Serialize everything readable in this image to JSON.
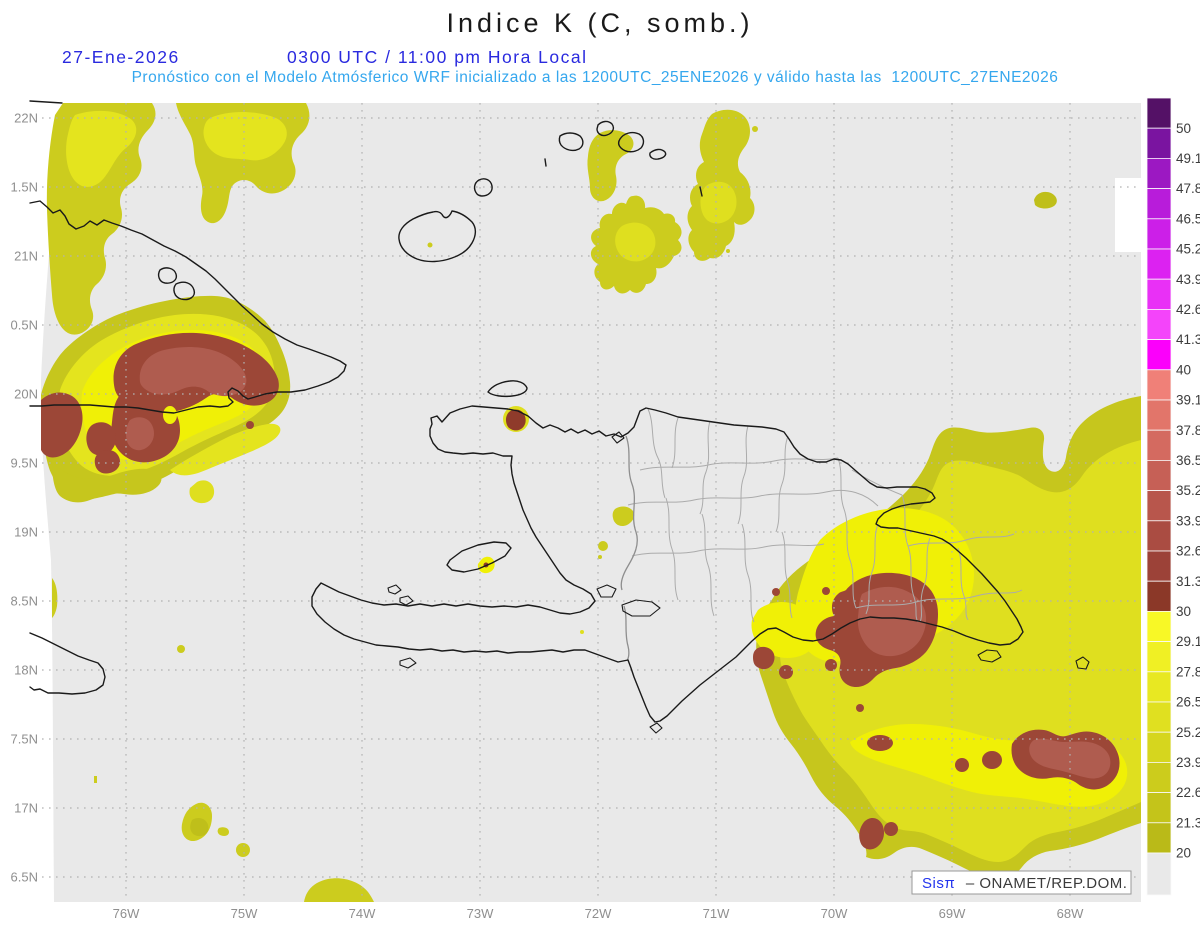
{
  "header": {
    "title": "Indice K (C, somb.)",
    "date": "27-Ene-2026",
    "time_line": "0300 UTC / 11:00 pm Hora Local",
    "forecast_line": "Pronóstico con el Modelo Atmósferico WRF inicializado a las 1200UTC_25ENE2026 y válido hasta las  1200UTC_27ENE2026"
  },
  "axes": {
    "y_labels": [
      "22N",
      "1.5N",
      "21N",
      "0.5N",
      "20N",
      "9.5N",
      "19N",
      "8.5N",
      "18N",
      "7.5N",
      "17N",
      "6.5N"
    ],
    "x_labels": [
      "76W",
      "75W",
      "74W",
      "73W",
      "72W",
      "71W",
      "70W",
      "69W",
      "68W"
    ]
  },
  "colorbar": {
    "labels": [
      "50",
      "49.1",
      "47.8",
      "46.5",
      "45.2",
      "43.9",
      "42.6",
      "41.3",
      "40",
      "39.1",
      "37.8",
      "36.5",
      "35.2",
      "33.9",
      "32.6",
      "31.3",
      "30",
      "29.1",
      "27.8",
      "26.5",
      "25.2",
      "23.9",
      "22.6",
      "21.3",
      "20"
    ],
    "colors": [
      "#541166",
      "#7A14A0",
      "#9C18C2",
      "#B81CDA",
      "#CC1FE8",
      "#DC22F1",
      "#E930F6",
      "#F444FA",
      "#FB00FB",
      "#F08078",
      "#E2756A",
      "#D46A60",
      "#C66056",
      "#B8564C",
      "#AA4C42",
      "#9C4238",
      "#8B3828",
      "#F8F826",
      "#F0F024",
      "#E8E822",
      "#E0E020",
      "#D6D61E",
      "#CCCC1C",
      "#C4C41A",
      "#BABA18",
      "#E9E9E9"
    ]
  },
  "attribution": {
    "brand": "Sisπ",
    "suffix": "– ONAMET/REP.DOM."
  },
  "palette": {
    "page_bg": "#FFFFFF",
    "domain_gray": "#E9E9E9",
    "coast": "#1A1A1A",
    "province": "#ABABAB",
    "border_line": "#8E8E8E",
    "grid": "#B2B2B2",
    "yellow_fringe": "#C6C61D",
    "yellow_low": "#CCCC1E",
    "yellow_mid": "#DFDF1F",
    "yellow_mid2": "#E4E41E",
    "yellow_bright": "#F0F006",
    "yellow_brightest": "#F6F600",
    "yellow_dark": "#BFBF1A",
    "brown": "#9C4737",
    "brown_light": "#AF5C4F",
    "brown_dark": "#8F3B2B",
    "date_blue": "#2A2ADF",
    "forecast_cyan": "#35A7EE",
    "axis_gray": "#8F8F8F",
    "cbar_label": "#3C3C3C",
    "attr_brand": "#2233EE",
    "attr_text": "#3A3A3A",
    "attr_border": "#999999"
  }
}
